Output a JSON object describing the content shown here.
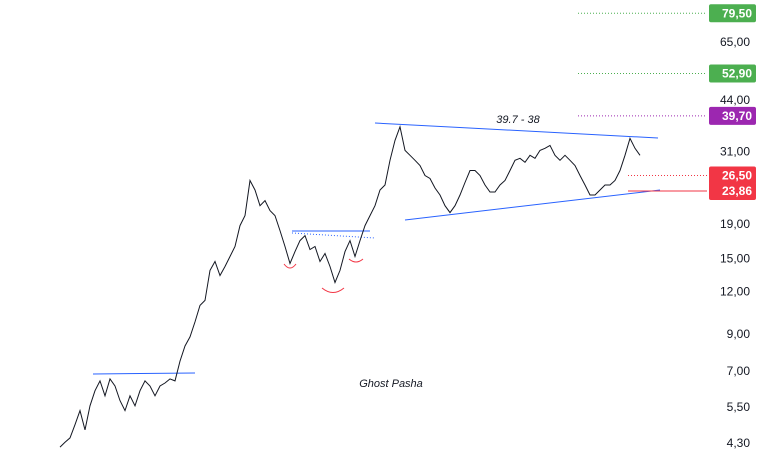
{
  "chart_data": {
    "type": "line",
    "log_scale": true,
    "series": [
      {
        "color": "#131722",
        "values": [
          4.21,
          4.35,
          4.48,
          4.9,
          5.39,
          4.73,
          5.57,
          6.17,
          6.59,
          5.96,
          6.68,
          6.37,
          5.77,
          5.39,
          5.96,
          5.57,
          6.17,
          6.59,
          6.37,
          5.96,
          6.37,
          6.5,
          6.68,
          6.59,
          7.54,
          8.35,
          8.88,
          9.83,
          10.99,
          11.37,
          13.93,
          14.8,
          13.46,
          14.31,
          15.31,
          16.38,
          18.87,
          20.19,
          25.62,
          24.02,
          21.6,
          22.35,
          20.89,
          20.19,
          18.24,
          16.38,
          14.6,
          15.83,
          17.05,
          17.64,
          16.05,
          16.38,
          14.8,
          15.62,
          14.31,
          12.84,
          13.93,
          15.83,
          17.05,
          15.31,
          17.05,
          18.87,
          20.19,
          21.6,
          24.02,
          24.85,
          29.37,
          33.62,
          36.85,
          31.42,
          30.38,
          29.37,
          28.36,
          26.5,
          25.97,
          24.35,
          23.22,
          21.6,
          20.61,
          21.6,
          23.22,
          25.27,
          27.41,
          27.41,
          26.5,
          24.85,
          23.7,
          23.7,
          24.85,
          25.62,
          27.41,
          29.37,
          29.77,
          28.97,
          30.38,
          29.77,
          31.42,
          31.85,
          32.5,
          30.38,
          29.37,
          30.38,
          29.37,
          28.36,
          26.5,
          24.85,
          23.22,
          23.22,
          24.02,
          24.85,
          24.85,
          25.62,
          27.41,
          30.38,
          34.08,
          31.85,
          30.38
        ]
      }
    ],
    "ylim": [
      4.1,
      87
    ],
    "yticks": [
      {
        "value": 65,
        "label": "65,00"
      },
      {
        "value": 44,
        "label": "44,00"
      },
      {
        "value": 31,
        "label": "31,00"
      },
      {
        "value": 19,
        "label": "19,00"
      },
      {
        "value": 15,
        "label": "15,00"
      },
      {
        "value": 12,
        "label": "12,00"
      },
      {
        "value": 9,
        "label": "9,00"
      },
      {
        "value": 7,
        "label": "7,00"
      },
      {
        "value": 5.5,
        "label": "5,50"
      },
      {
        "value": 4.3,
        "label": "4,30"
      }
    ],
    "price_levels": [
      {
        "value": 79.5,
        "label": "79,50",
        "color": "#4caf50",
        "line_style": "dotted"
      },
      {
        "value": 52.9,
        "label": "52,90",
        "color": "#4caf50",
        "line_style": "dotted"
      },
      {
        "value": 39.7,
        "label": "39,70",
        "color": "#9c27b0",
        "line_style": "dotted"
      },
      {
        "value": 26.5,
        "label": "26,50",
        "color": "#f23645",
        "line_style": "dotted"
      },
      {
        "value": 23.86,
        "label": "23,86",
        "color": "#f23645",
        "line_style": "solid"
      }
    ],
    "annotations": [
      "39.7 - 38",
      "Ghost Pasha"
    ]
  }
}
